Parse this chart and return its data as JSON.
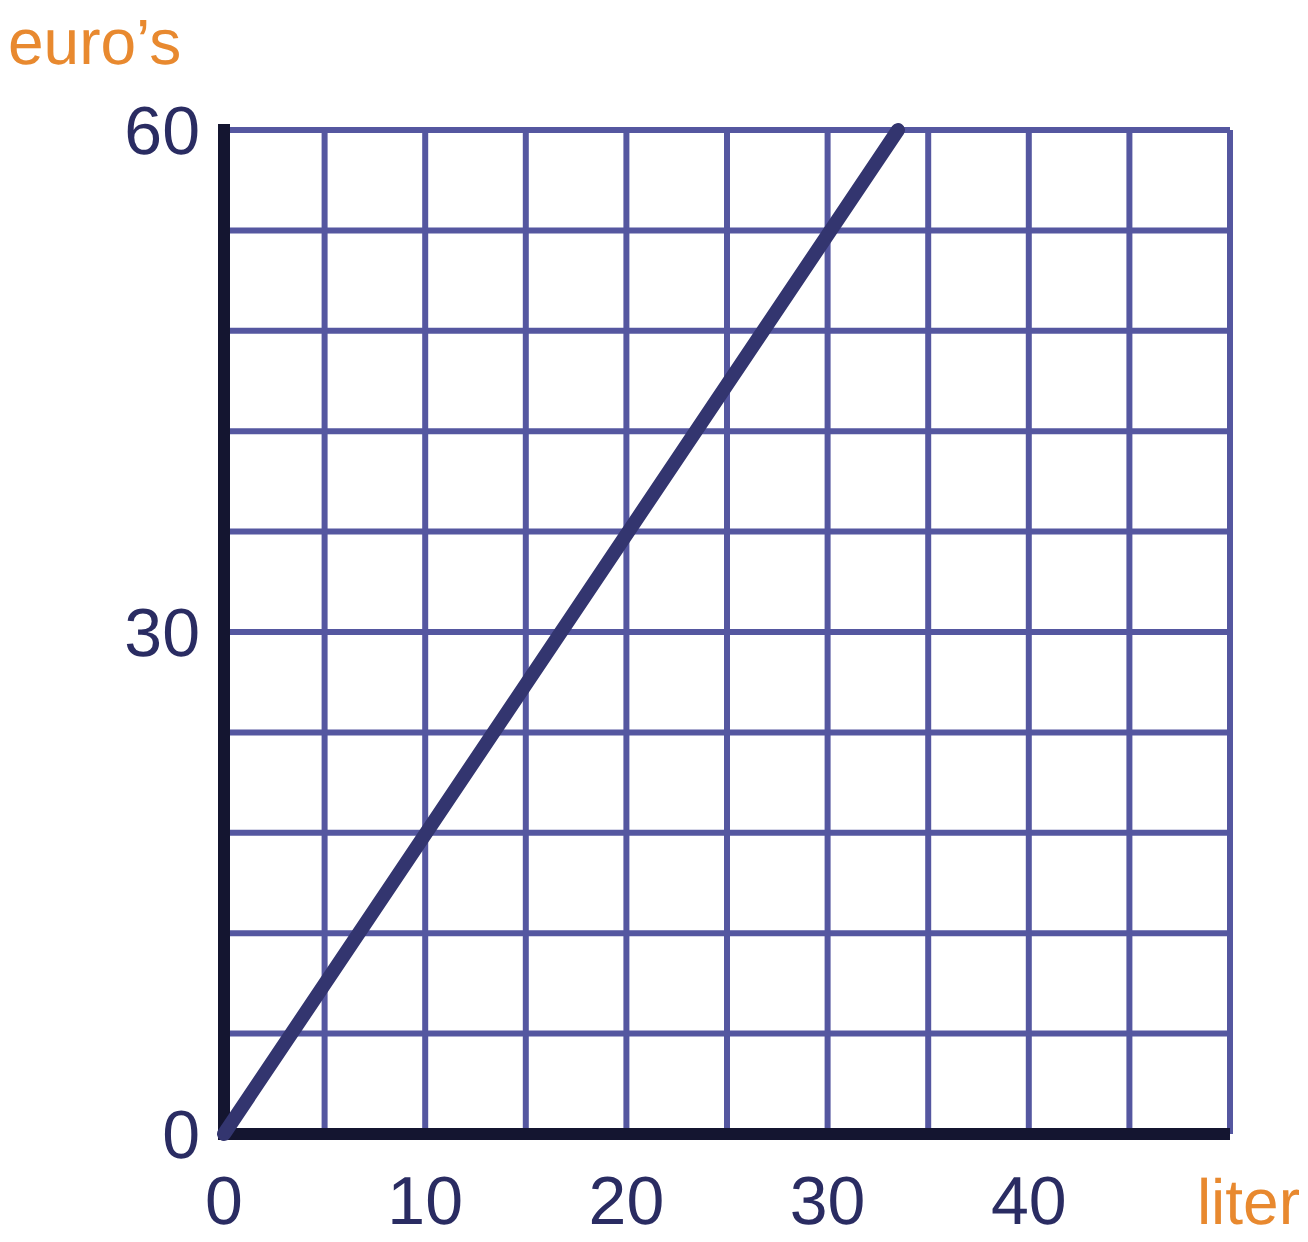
{
  "chart_data": {
    "type": "line",
    "xlabel": "liter",
    "ylabel": "euro’s",
    "x": [
      0,
      33.5
    ],
    "series": [
      {
        "color": "#33356f",
        "values": [
          0,
          60
        ]
      }
    ],
    "xlim": [
      0,
      50
    ],
    "ylim": [
      0,
      60
    ],
    "xticks": [
      0,
      {
        "value": 5,
        "label": null
      },
      10,
      {
        "value": 15,
        "label": null
      },
      20,
      {
        "value": 25,
        "label": null
      },
      30,
      {
        "value": 35,
        "label": null
      },
      40,
      {
        "value": 45,
        "label": null
      },
      {
        "value": 50,
        "label": null
      }
    ],
    "yticks": [
      0,
      {
        "value": 6,
        "label": null
      },
      {
        "value": 12,
        "label": null
      },
      {
        "value": 18,
        "label": null
      },
      {
        "value": 24,
        "label": null
      },
      30,
      {
        "value": 36,
        "label": null
      },
      {
        "value": 42,
        "label": null
      },
      {
        "value": 48,
        "label": null
      },
      {
        "value": 54,
        "label": null
      },
      60
    ],
    "grid": true,
    "marker": "none",
    "line_style": "solid"
  }
}
